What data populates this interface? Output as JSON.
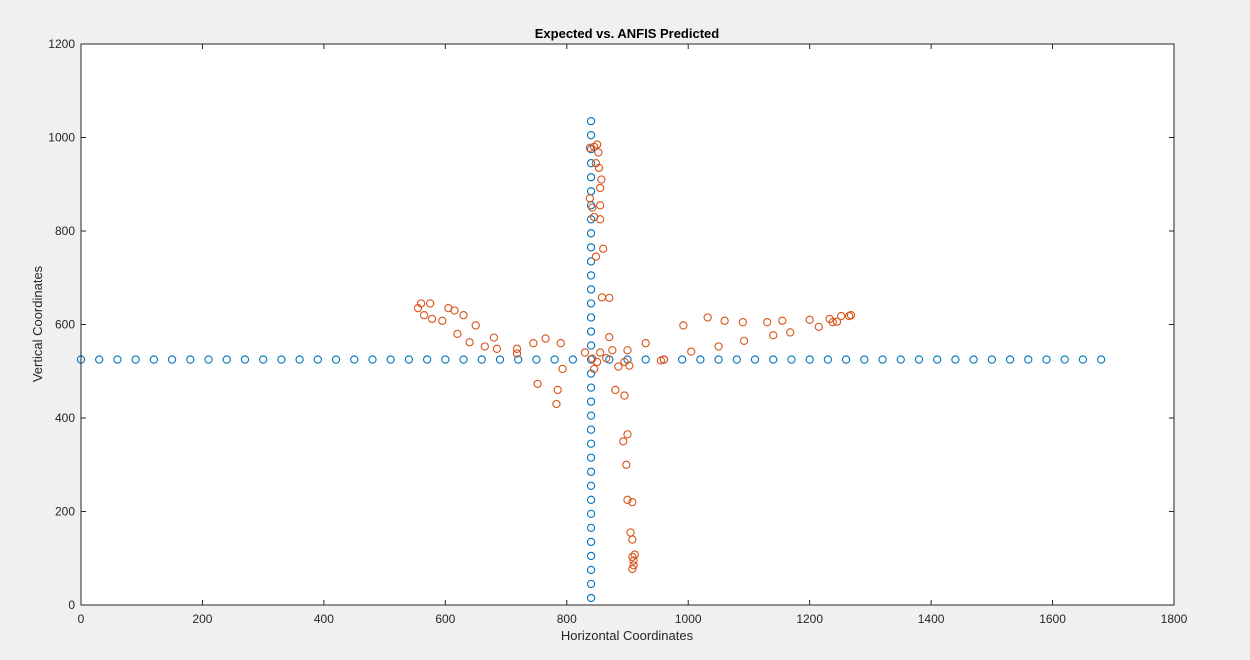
{
  "chart_data": {
    "type": "scatter",
    "title": "Expected vs. ANFIS Predicted",
    "xlabel": "Horizontal Coordinates",
    "ylabel": "Vertical Coordinates",
    "xlim": [
      0,
      1800
    ],
    "ylim": [
      0,
      1200
    ],
    "xticks": [
      0,
      200,
      400,
      600,
      800,
      1000,
      1200,
      1400,
      1600,
      1800
    ],
    "yticks": [
      0,
      200,
      400,
      600,
      800,
      1000,
      1200
    ],
    "xtick_labels": [
      "0",
      "200",
      "400",
      "600",
      "800",
      "1000",
      "1200",
      "1400",
      "1600",
      "1800"
    ],
    "ytick_labels": [
      "0",
      "200",
      "400",
      "600",
      "800",
      "1000",
      "1200"
    ],
    "grid": false,
    "legend": "none",
    "marker": "open-circle",
    "series": [
      {
        "color": "#0072BD",
        "points": [
          [
            0,
            525
          ],
          [
            30,
            525
          ],
          [
            60,
            525
          ],
          [
            90,
            525
          ],
          [
            120,
            525
          ],
          [
            150,
            525
          ],
          [
            180,
            525
          ],
          [
            210,
            525
          ],
          [
            240,
            525
          ],
          [
            270,
            525
          ],
          [
            300,
            525
          ],
          [
            330,
            525
          ],
          [
            360,
            525
          ],
          [
            390,
            525
          ],
          [
            420,
            525
          ],
          [
            450,
            525
          ],
          [
            480,
            525
          ],
          [
            510,
            525
          ],
          [
            540,
            525
          ],
          [
            570,
            525
          ],
          [
            600,
            525
          ],
          [
            630,
            525
          ],
          [
            660,
            525
          ],
          [
            690,
            525
          ],
          [
            720,
            525
          ],
          [
            750,
            525
          ],
          [
            780,
            525
          ],
          [
            810,
            525
          ],
          [
            840,
            525
          ],
          [
            870,
            525
          ],
          [
            900,
            525
          ],
          [
            930,
            525
          ],
          [
            960,
            525
          ],
          [
            990,
            525
          ],
          [
            1020,
            525
          ],
          [
            1050,
            525
          ],
          [
            1080,
            525
          ],
          [
            1110,
            525
          ],
          [
            1140,
            525
          ],
          [
            1170,
            525
          ],
          [
            1200,
            525
          ],
          [
            1230,
            525
          ],
          [
            1260,
            525
          ],
          [
            1290,
            525
          ],
          [
            1320,
            525
          ],
          [
            1350,
            525
          ],
          [
            1380,
            525
          ],
          [
            1410,
            525
          ],
          [
            1440,
            525
          ],
          [
            1470,
            525
          ],
          [
            1500,
            525
          ],
          [
            1530,
            525
          ],
          [
            1560,
            525
          ],
          [
            1590,
            525
          ],
          [
            1620,
            525
          ],
          [
            1650,
            525
          ],
          [
            1680,
            525
          ],
          [
            840,
            15
          ],
          [
            840,
            45
          ],
          [
            840,
            75
          ],
          [
            840,
            105
          ],
          [
            840,
            135
          ],
          [
            840,
            165
          ],
          [
            840,
            195
          ],
          [
            840,
            225
          ],
          [
            840,
            255
          ],
          [
            840,
            285
          ],
          [
            840,
            315
          ],
          [
            840,
            345
          ],
          [
            840,
            375
          ],
          [
            840,
            405
          ],
          [
            840,
            435
          ],
          [
            840,
            465
          ],
          [
            840,
            495
          ],
          [
            840,
            555
          ],
          [
            840,
            585
          ],
          [
            840,
            615
          ],
          [
            840,
            645
          ],
          [
            840,
            675
          ],
          [
            840,
            705
          ],
          [
            840,
            735
          ],
          [
            840,
            765
          ],
          [
            840,
            795
          ],
          [
            840,
            825
          ],
          [
            840,
            855
          ],
          [
            840,
            885
          ],
          [
            840,
            915
          ],
          [
            840,
            945
          ],
          [
            840,
            975
          ],
          [
            840,
            1005
          ],
          [
            840,
            1035
          ]
        ]
      },
      {
        "color": "#D95319",
        "points": [
          [
            555,
            635
          ],
          [
            560,
            645
          ],
          [
            565,
            620
          ],
          [
            575,
            645
          ],
          [
            578,
            612
          ],
          [
            595,
            608
          ],
          [
            605,
            635
          ],
          [
            615,
            630
          ],
          [
            630,
            620
          ],
          [
            650,
            598
          ],
          [
            620,
            580
          ],
          [
            640,
            562
          ],
          [
            665,
            553
          ],
          [
            680,
            572
          ],
          [
            685,
            548
          ],
          [
            718,
            548
          ],
          [
            718,
            538
          ],
          [
            745,
            560
          ],
          [
            765,
            570
          ],
          [
            790,
            560
          ],
          [
            793,
            505
          ],
          [
            830,
            540
          ],
          [
            752,
            473
          ],
          [
            785,
            460
          ],
          [
            783,
            430
          ],
          [
            842,
            527
          ],
          [
            850,
            520
          ],
          [
            855,
            540
          ],
          [
            865,
            528
          ],
          [
            870,
            573
          ],
          [
            875,
            545
          ],
          [
            885,
            510
          ],
          [
            895,
            520
          ],
          [
            900,
            545
          ],
          [
            903,
            512
          ],
          [
            930,
            560
          ],
          [
            955,
            523
          ],
          [
            960,
            525
          ],
          [
            992,
            598
          ],
          [
            1005,
            542
          ],
          [
            1032,
            615
          ],
          [
            1050,
            553
          ],
          [
            1060,
            608
          ],
          [
            1090,
            605
          ],
          [
            1092,
            565
          ],
          [
            1130,
            605
          ],
          [
            1140,
            577
          ],
          [
            1155,
            608
          ],
          [
            1168,
            583
          ],
          [
            1200,
            610
          ],
          [
            1215,
            595
          ],
          [
            1233,
            612
          ],
          [
            1238,
            605
          ],
          [
            1245,
            606
          ],
          [
            1252,
            618
          ],
          [
            1265,
            618
          ],
          [
            1268,
            620
          ],
          [
            880,
            460
          ],
          [
            895,
            448
          ],
          [
            893,
            350
          ],
          [
            900,
            365
          ],
          [
            898,
            300
          ],
          [
            900,
            225
          ],
          [
            908,
            220
          ],
          [
            905,
            155
          ],
          [
            908,
            140
          ],
          [
            908,
            103
          ],
          [
            910,
            95
          ],
          [
            912,
            108
          ],
          [
            910,
            85
          ],
          [
            908,
            77
          ],
          [
            845,
            505
          ],
          [
            848,
            745
          ],
          [
            860,
            762
          ],
          [
            858,
            658
          ],
          [
            870,
            657
          ],
          [
            838,
            870
          ],
          [
            842,
            850
          ],
          [
            845,
            830
          ],
          [
            855,
            855
          ],
          [
            855,
            825
          ],
          [
            848,
            945
          ],
          [
            853,
            935
          ],
          [
            857,
            910
          ],
          [
            855,
            892
          ],
          [
            845,
            980
          ],
          [
            850,
            985
          ],
          [
            852,
            968
          ],
          [
            838,
            978
          ]
        ]
      }
    ]
  }
}
